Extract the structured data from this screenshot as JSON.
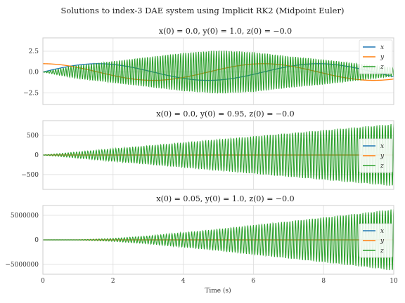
{
  "figure": {
    "suptitle": "Solutions to index-3 DAE system using Implicit RK2 (Midpoint Euler)",
    "xlabel": "Time (s)"
  },
  "colors": {
    "x": "#1f77b4",
    "y": "#ff7f0e",
    "z": "#2ca02c",
    "grid": "#dcdcdc",
    "axes_edge": "#cccccc"
  },
  "chart_data": [
    {
      "type": "line",
      "title": "x(0) = 0.0, y(0) = 1.0, z(0) = −0.0",
      "xlim": [
        0,
        10
      ],
      "ylim": [
        -3.9,
        4.1
      ],
      "xticks": [
        0,
        2,
        4,
        6,
        8,
        10
      ],
      "xtick_labels": [
        "0",
        "2",
        "4",
        "6",
        "8",
        "10"
      ],
      "yticks": [
        -2.5,
        0,
        2.5
      ],
      "ytick_labels": [
        "−2.5",
        "0.0",
        "2.5"
      ],
      "show_x_tick_labels": false,
      "grid": true,
      "legend": "top-right",
      "series": [
        {
          "name": "x",
          "x": [
            0,
            1.5708,
            3.1416,
            4.7124,
            6.2832,
            7.854,
            9.4248,
            10
          ],
          "y": [
            0,
            1,
            0,
            -1,
            0,
            1,
            0,
            -0.54
          ],
          "note_shape": "sin"
        },
        {
          "name": "y",
          "x": [
            0,
            1.5708,
            3.1416,
            4.7124,
            6.2832,
            7.854,
            9.4248,
            10
          ],
          "y": [
            1,
            0,
            -1,
            0,
            1,
            0,
            -1,
            -0.84
          ]
        },
        {
          "name": "z",
          "x": [
            0,
            1,
            2,
            3,
            4,
            5,
            6,
            7,
            8,
            9,
            10
          ],
          "y": [
            0,
            0.8,
            1.3,
            1.8,
            2.3,
            2.6,
            2.4,
            1.9,
            1.5,
            1.0,
            0.5
          ]
        }
      ]
    },
    {
      "type": "line",
      "title": "x(0) = 0.0, y(0) = 0.95, z(0) = −0.0",
      "xlim": [
        0,
        10
      ],
      "ylim": [
        -880,
        880
      ],
      "xticks": [
        0,
        2,
        4,
        6,
        8,
        10
      ],
      "xtick_labels": [
        "0",
        "2",
        "4",
        "6",
        "8",
        "10"
      ],
      "yticks": [
        -500,
        0,
        500
      ],
      "ytick_labels": [
        "−500",
        "0",
        "500"
      ],
      "show_x_tick_labels": false,
      "grid": true,
      "legend": "right",
      "series": [
        {
          "name": "x",
          "x": [
            0,
            10
          ],
          "y": [
            0,
            0
          ]
        },
        {
          "name": "y",
          "x": [
            0,
            10
          ],
          "y": [
            0,
            0
          ]
        },
        {
          "name": "z",
          "x": [
            0,
            2,
            4,
            6,
            8,
            10
          ],
          "y": [
            0,
            160,
            320,
            480,
            640,
            800
          ]
        }
      ]
    },
    {
      "type": "line",
      "title": "x(0) = 0.05, y(0) = 1.0, z(0) = −0.0",
      "xlim": [
        0,
        10
      ],
      "ylim": [
        -7000000,
        7000000
      ],
      "xticks": [
        0,
        2,
        4,
        6,
        8,
        10
      ],
      "xtick_labels": [
        "0",
        "2",
        "4",
        "6",
        "8",
        "10"
      ],
      "yticks": [
        -5000000,
        0,
        5000000
      ],
      "ytick_labels": [
        "−5000000",
        "0",
        "5000000"
      ],
      "show_x_tick_labels": true,
      "grid": true,
      "legend": "right",
      "series": [
        {
          "name": "x",
          "x": [
            0,
            10
          ],
          "y": [
            0,
            0
          ]
        },
        {
          "name": "y",
          "x": [
            0,
            10
          ],
          "y": [
            0,
            0
          ]
        },
        {
          "name": "z",
          "x": [
            0,
            1,
            2,
            3,
            4,
            5,
            6,
            7,
            8,
            9,
            10
          ],
          "y": [
            0,
            20000,
            300000,
            800000,
            1500000,
            2200000,
            3000000,
            3800000,
            4600000,
            5400000,
            6300000
          ]
        }
      ]
    }
  ]
}
